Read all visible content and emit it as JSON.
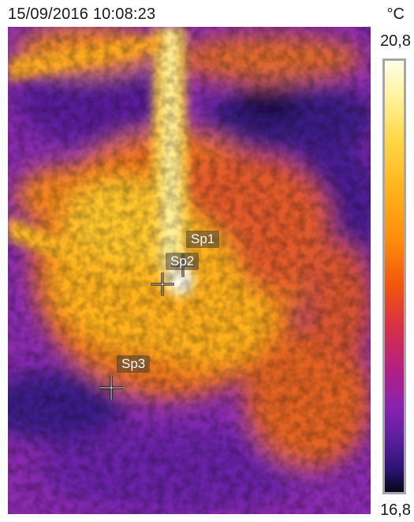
{
  "header": {
    "timestamp": "15/09/2016 10:08:23",
    "unit": "°C"
  },
  "scale": {
    "max": "20,8",
    "min": "16,8",
    "palette": "iron",
    "colors": [
      "#fffde8",
      "#ffd84a",
      "#ff8a0c",
      "#d82f4a",
      "#8a23ae",
      "#2a1370",
      "#050518"
    ]
  },
  "spots": [
    {
      "label": "Sp1"
    },
    {
      "label": "Sp2"
    },
    {
      "label": "Sp3"
    }
  ]
}
